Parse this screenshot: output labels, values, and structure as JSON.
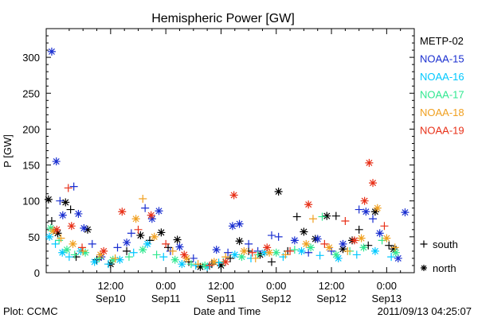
{
  "chart_data": {
    "type": "scatter",
    "title": "Hemispheric Power [GW]",
    "xlabel": "Date and Time",
    "ylabel": "P [GW]",
    "ylim": [
      0,
      340
    ],
    "yticks": [
      0,
      50,
      100,
      150,
      200,
      250,
      300
    ],
    "xlim_hours": [
      -2,
      78
    ],
    "xticks": [
      {
        "hour": 12,
        "time": "12:00",
        "date": "Sep10"
      },
      {
        "hour": 24,
        "time": "0:00",
        "date": "Sep11"
      },
      {
        "hour": 36,
        "time": "12:00",
        "date": "Sep11"
      },
      {
        "hour": 48,
        "time": "0:00",
        "date": "Sep12"
      },
      {
        "hour": 60,
        "time": "12:00",
        "date": "Sep12"
      },
      {
        "hour": 72,
        "time": "0:00",
        "date": "Sep13"
      }
    ],
    "grid": false,
    "legend_position": "right",
    "legend_markers": [
      {
        "symbol": "+",
        "label": "south"
      },
      {
        "symbol": "*",
        "label": "north"
      }
    ],
    "series": [
      {
        "name": "METP-02",
        "color": "#000000",
        "points": [
          {
            "x": -1.5,
            "y": 102,
            "hemi": "north"
          },
          {
            "x": -0.8,
            "y": 72,
            "hemi": "south"
          },
          {
            "x": 0.5,
            "y": 55,
            "hemi": "north"
          },
          {
            "x": 2.2,
            "y": 98,
            "hemi": "north"
          },
          {
            "x": 3.3,
            "y": 88,
            "hemi": "south"
          },
          {
            "x": 4.5,
            "y": 22,
            "hemi": "south"
          },
          {
            "x": 7.0,
            "y": 60,
            "hemi": "north"
          },
          {
            "x": 9.0,
            "y": 18,
            "hemi": "south"
          },
          {
            "x": 12.0,
            "y": 12,
            "hemi": "north"
          },
          {
            "x": 15.5,
            "y": 30,
            "hemi": "south"
          },
          {
            "x": 18.5,
            "y": 52,
            "hemi": "north"
          },
          {
            "x": 20.5,
            "y": 45,
            "hemi": "south"
          },
          {
            "x": 23.0,
            "y": 56,
            "hemi": "north"
          },
          {
            "x": 24.5,
            "y": 35,
            "hemi": "south"
          },
          {
            "x": 26.5,
            "y": 46,
            "hemi": "north"
          },
          {
            "x": 29.0,
            "y": 15,
            "hemi": "south"
          },
          {
            "x": 31.5,
            "y": 8,
            "hemi": "north"
          },
          {
            "x": 34.0,
            "y": 12,
            "hemi": "south"
          },
          {
            "x": 36.0,
            "y": 10,
            "hemi": "north"
          },
          {
            "x": 38.0,
            "y": 20,
            "hemi": "south"
          },
          {
            "x": 40.0,
            "y": 44,
            "hemi": "north"
          },
          {
            "x": 42.0,
            "y": 30,
            "hemi": "south"
          },
          {
            "x": 44.5,
            "y": 25,
            "hemi": "north"
          },
          {
            "x": 47.0,
            "y": 15,
            "hemi": "south"
          },
          {
            "x": 48.5,
            "y": 113,
            "hemi": "north"
          },
          {
            "x": 50.5,
            "y": 30,
            "hemi": "south"
          },
          {
            "x": 52.5,
            "y": 78,
            "hemi": "south"
          },
          {
            "x": 54.0,
            "y": 57,
            "hemi": "north"
          },
          {
            "x": 56.5,
            "y": 47,
            "hemi": "north"
          },
          {
            "x": 59.0,
            "y": 79,
            "hemi": "north"
          },
          {
            "x": 61.0,
            "y": 79,
            "hemi": "south"
          },
          {
            "x": 62.5,
            "y": 33,
            "hemi": "north"
          },
          {
            "x": 64.5,
            "y": 45,
            "hemi": "north"
          },
          {
            "x": 66.0,
            "y": 60,
            "hemi": "south"
          },
          {
            "x": 68.0,
            "y": 38,
            "hemi": "south"
          },
          {
            "x": 69.5,
            "y": 85,
            "hemi": "north"
          },
          {
            "x": 72.5,
            "y": 38,
            "hemi": "south"
          },
          {
            "x": 73.5,
            "y": 33,
            "hemi": "north"
          }
        ]
      },
      {
        "name": "NOAA-15",
        "color": "#1a2fd0",
        "points": [
          {
            "x": -0.8,
            "y": 308,
            "hemi": "north"
          },
          {
            "x": 0.2,
            "y": 155,
            "hemi": "north"
          },
          {
            "x": 1.0,
            "y": 100,
            "hemi": "south"
          },
          {
            "x": 1.6,
            "y": 80,
            "hemi": "north"
          },
          {
            "x": 4.0,
            "y": 120,
            "hemi": "south"
          },
          {
            "x": 5.0,
            "y": 82,
            "hemi": "north"
          },
          {
            "x": 6.2,
            "y": 62,
            "hemi": "north"
          },
          {
            "x": 8.0,
            "y": 40,
            "hemi": "south"
          },
          {
            "x": 10.0,
            "y": 22,
            "hemi": "north"
          },
          {
            "x": 13.5,
            "y": 35,
            "hemi": "south"
          },
          {
            "x": 15.5,
            "y": 42,
            "hemi": "north"
          },
          {
            "x": 16.5,
            "y": 55,
            "hemi": "south"
          },
          {
            "x": 19.5,
            "y": 90,
            "hemi": "south"
          },
          {
            "x": 21.0,
            "y": 75,
            "hemi": "north"
          },
          {
            "x": 22.5,
            "y": 86,
            "hemi": "north"
          },
          {
            "x": 25.0,
            "y": 30,
            "hemi": "south"
          },
          {
            "x": 27.0,
            "y": 36,
            "hemi": "north"
          },
          {
            "x": 30.0,
            "y": 20,
            "hemi": "south"
          },
          {
            "x": 35.0,
            "y": 32,
            "hemi": "north"
          },
          {
            "x": 37.5,
            "y": 28,
            "hemi": "south"
          },
          {
            "x": 38.5,
            "y": 65,
            "hemi": "north"
          },
          {
            "x": 40.0,
            "y": 68,
            "hemi": "north"
          },
          {
            "x": 42.0,
            "y": 40,
            "hemi": "south"
          },
          {
            "x": 44.0,
            "y": 30,
            "hemi": "south"
          },
          {
            "x": 47.0,
            "y": 52,
            "hemi": "south"
          },
          {
            "x": 48.5,
            "y": 50,
            "hemi": "south"
          },
          {
            "x": 52.0,
            "y": 45,
            "hemi": "north"
          },
          {
            "x": 55.0,
            "y": 28,
            "hemi": "south"
          },
          {
            "x": 57.0,
            "y": 47,
            "hemi": "north"
          },
          {
            "x": 60.0,
            "y": 30,
            "hemi": "south"
          },
          {
            "x": 62.5,
            "y": 40,
            "hemi": "north"
          },
          {
            "x": 66.0,
            "y": 88,
            "hemi": "south"
          },
          {
            "x": 67.5,
            "y": 85,
            "hemi": "north"
          },
          {
            "x": 69.0,
            "y": 75,
            "hemi": "south"
          },
          {
            "x": 70.5,
            "y": 55,
            "hemi": "north"
          },
          {
            "x": 74.5,
            "y": 20,
            "hemi": "north"
          },
          {
            "x": 76.0,
            "y": 84,
            "hemi": "north"
          }
        ]
      },
      {
        "name": "NOAA-16",
        "color": "#00c8ff",
        "points": [
          {
            "x": -1.3,
            "y": 50,
            "hemi": "north"
          },
          {
            "x": 0.0,
            "y": 40,
            "hemi": "south"
          },
          {
            "x": 1.5,
            "y": 28,
            "hemi": "north"
          },
          {
            "x": 3.0,
            "y": 22,
            "hemi": "south"
          },
          {
            "x": 5.5,
            "y": 30,
            "hemi": "north"
          },
          {
            "x": 8.5,
            "y": 15,
            "hemi": "north"
          },
          {
            "x": 11.5,
            "y": 12,
            "hemi": "south"
          },
          {
            "x": 14.0,
            "y": 18,
            "hemi": "north"
          },
          {
            "x": 17.0,
            "y": 28,
            "hemi": "south"
          },
          {
            "x": 20.0,
            "y": 40,
            "hemi": "north"
          },
          {
            "x": 23.5,
            "y": 22,
            "hemi": "south"
          },
          {
            "x": 27.5,
            "y": 12,
            "hemi": "north"
          },
          {
            "x": 30.5,
            "y": 10,
            "hemi": "south"
          },
          {
            "x": 33.0,
            "y": 8,
            "hemi": "north"
          },
          {
            "x": 35.5,
            "y": 14,
            "hemi": "south"
          },
          {
            "x": 39.0,
            "y": 25,
            "hemi": "north"
          },
          {
            "x": 42.5,
            "y": 20,
            "hemi": "south"
          },
          {
            "x": 45.5,
            "y": 28,
            "hemi": "north"
          },
          {
            "x": 49.5,
            "y": 22,
            "hemi": "south"
          },
          {
            "x": 53.5,
            "y": 30,
            "hemi": "north"
          },
          {
            "x": 57.5,
            "y": 24,
            "hemi": "south"
          },
          {
            "x": 61.5,
            "y": 20,
            "hemi": "north"
          },
          {
            "x": 65.5,
            "y": 25,
            "hemi": "south"
          },
          {
            "x": 69.5,
            "y": 30,
            "hemi": "north"
          },
          {
            "x": 73.0,
            "y": 22,
            "hemi": "south"
          }
        ]
      },
      {
        "name": "NOAA-17",
        "color": "#30e890",
        "points": [
          {
            "x": -1.0,
            "y": 62,
            "hemi": "north"
          },
          {
            "x": 0.8,
            "y": 45,
            "hemi": "south"
          },
          {
            "x": 2.5,
            "y": 32,
            "hemi": "north"
          },
          {
            "x": 4.2,
            "y": 25,
            "hemi": "south"
          },
          {
            "x": 6.5,
            "y": 28,
            "hemi": "north"
          },
          {
            "x": 9.5,
            "y": 20,
            "hemi": "south"
          },
          {
            "x": 12.5,
            "y": 18,
            "hemi": "north"
          },
          {
            "x": 16.0,
            "y": 22,
            "hemi": "south"
          },
          {
            "x": 19.0,
            "y": 32,
            "hemi": "north"
          },
          {
            "x": 22.0,
            "y": 25,
            "hemi": "south"
          },
          {
            "x": 26.0,
            "y": 18,
            "hemi": "north"
          },
          {
            "x": 29.5,
            "y": 12,
            "hemi": "south"
          },
          {
            "x": 32.5,
            "y": 10,
            "hemi": "north"
          },
          {
            "x": 36.5,
            "y": 15,
            "hemi": "south"
          },
          {
            "x": 40.5,
            "y": 22,
            "hemi": "north"
          },
          {
            "x": 44.0,
            "y": 25,
            "hemi": "south"
          },
          {
            "x": 48.0,
            "y": 28,
            "hemi": "north"
          },
          {
            "x": 52.0,
            "y": 32,
            "hemi": "south"
          },
          {
            "x": 55.5,
            "y": 35,
            "hemi": "north"
          },
          {
            "x": 58.0,
            "y": 78,
            "hemi": "south"
          },
          {
            "x": 61.0,
            "y": 25,
            "hemi": "north"
          },
          {
            "x": 64.0,
            "y": 30,
            "hemi": "south"
          },
          {
            "x": 67.0,
            "y": 35,
            "hemi": "north"
          },
          {
            "x": 71.0,
            "y": 45,
            "hemi": "south"
          },
          {
            "x": 74.0,
            "y": 28,
            "hemi": "north"
          }
        ]
      },
      {
        "name": "NOAA-18",
        "color": "#f0a020",
        "points": [
          {
            "x": -0.5,
            "y": 58,
            "hemi": "north"
          },
          {
            "x": 1.2,
            "y": 48,
            "hemi": "south"
          },
          {
            "x": 3.8,
            "y": 40,
            "hemi": "north"
          },
          {
            "x": 6.0,
            "y": 30,
            "hemi": "south"
          },
          {
            "x": 9.8,
            "y": 25,
            "hemi": "north"
          },
          {
            "x": 13.0,
            "y": 20,
            "hemi": "south"
          },
          {
            "x": 17.5,
            "y": 75,
            "hemi": "north"
          },
          {
            "x": 19.0,
            "y": 103,
            "hemi": "south"
          },
          {
            "x": 21.5,
            "y": 50,
            "hemi": "north"
          },
          {
            "x": 25.5,
            "y": 30,
            "hemi": "south"
          },
          {
            "x": 28.5,
            "y": 20,
            "hemi": "north"
          },
          {
            "x": 31.0,
            "y": 12,
            "hemi": "south"
          },
          {
            "x": 34.5,
            "y": 15,
            "hemi": "north"
          },
          {
            "x": 37.0,
            "y": 22,
            "hemi": "south"
          },
          {
            "x": 41.0,
            "y": 30,
            "hemi": "north"
          },
          {
            "x": 43.5,
            "y": 20,
            "hemi": "south"
          },
          {
            "x": 46.5,
            "y": 28,
            "hemi": "north"
          },
          {
            "x": 50.0,
            "y": 25,
            "hemi": "south"
          },
          {
            "x": 54.5,
            "y": 40,
            "hemi": "north"
          },
          {
            "x": 56.0,
            "y": 75,
            "hemi": "south"
          },
          {
            "x": 59.5,
            "y": 35,
            "hemi": "north"
          },
          {
            "x": 63.5,
            "y": 30,
            "hemi": "south"
          },
          {
            "x": 66.5,
            "y": 48,
            "hemi": "north"
          },
          {
            "x": 70.0,
            "y": 90,
            "hemi": "north"
          },
          {
            "x": 72.0,
            "y": 48,
            "hemi": "north"
          },
          {
            "x": 73.8,
            "y": 35,
            "hemi": "south"
          }
        ]
      },
      {
        "name": "NOAA-19",
        "color": "#e83018",
        "points": [
          {
            "x": 0.3,
            "y": 60,
            "hemi": "north"
          },
          {
            "x": 2.8,
            "y": 118,
            "hemi": "south"
          },
          {
            "x": 3.5,
            "y": 65,
            "hemi": "north"
          },
          {
            "x": 5.8,
            "y": 35,
            "hemi": "south"
          },
          {
            "x": 10.5,
            "y": 30,
            "hemi": "north"
          },
          {
            "x": 14.5,
            "y": 85,
            "hemi": "north"
          },
          {
            "x": 18.0,
            "y": 60,
            "hemi": "south"
          },
          {
            "x": 20.8,
            "y": 80,
            "hemi": "north"
          },
          {
            "x": 24.0,
            "y": 40,
            "hemi": "south"
          },
          {
            "x": 28.0,
            "y": 25,
            "hemi": "north"
          },
          {
            "x": 33.5,
            "y": 10,
            "hemi": "south"
          },
          {
            "x": 37.0,
            "y": 15,
            "hemi": "north"
          },
          {
            "x": 38.8,
            "y": 108,
            "hemi": "north"
          },
          {
            "x": 42.8,
            "y": 28,
            "hemi": "south"
          },
          {
            "x": 46.0,
            "y": 35,
            "hemi": "north"
          },
          {
            "x": 51.0,
            "y": 30,
            "hemi": "south"
          },
          {
            "x": 55.0,
            "y": 95,
            "hemi": "north"
          },
          {
            "x": 58.5,
            "y": 40,
            "hemi": "south"
          },
          {
            "x": 63.0,
            "y": 72,
            "hemi": "south"
          },
          {
            "x": 65.0,
            "y": 45,
            "hemi": "north"
          },
          {
            "x": 67.2,
            "y": 100,
            "hemi": "north"
          },
          {
            "x": 68.2,
            "y": 153,
            "hemi": "north"
          },
          {
            "x": 69.0,
            "y": 125,
            "hemi": "north"
          },
          {
            "x": 71.5,
            "y": 65,
            "hemi": "south"
          }
        ]
      }
    ]
  },
  "footer": {
    "left": "Plot: CCMC",
    "right": "2011/09/13 04:25:07"
  }
}
